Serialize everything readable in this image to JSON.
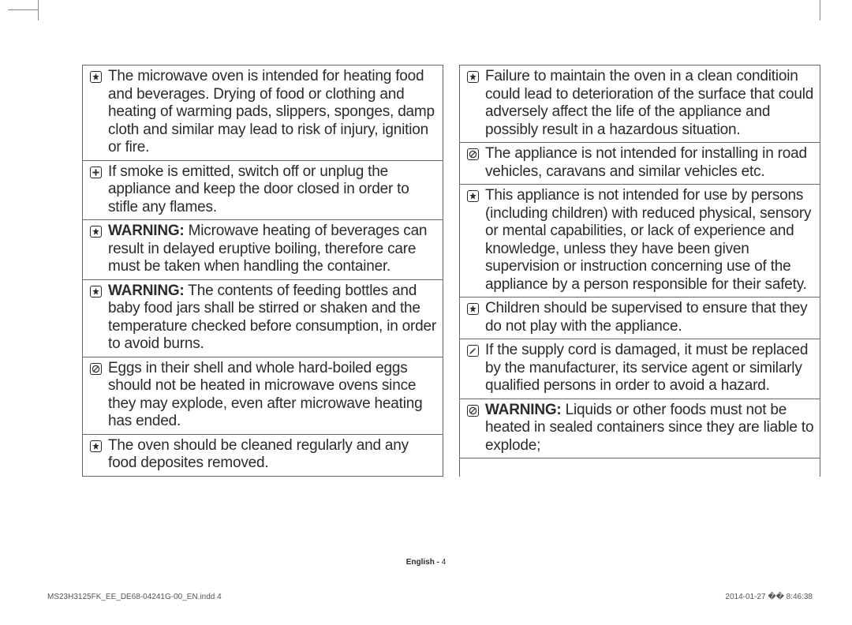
{
  "left": [
    {
      "icon": "star",
      "bold": "",
      "text": "The microwave oven is intended for heating food and beverages. Drying of food or clothing and heating of warming pads, slippers, sponges, damp cloth and similar may lead to risk of injury, ignition or fire."
    },
    {
      "icon": "plus",
      "bold": "",
      "text": "If smoke is emitted, switch off or unplug the appliance and keep the door closed in order to stifle any flames."
    },
    {
      "icon": "star",
      "bold": "WARNING:",
      "text": " Microwave heating of beverages can result in delayed eruptive boiling, therefore care must be taken when handling the container."
    },
    {
      "icon": "star",
      "bold": "WARNING:",
      "text": " The contents of feeding bottles and baby food jars shall be stirred or shaken and the temperature checked before consumption, in order to avoid burns."
    },
    {
      "icon": "slash",
      "bold": "",
      "text": "Eggs in their shell and whole hard-boiled eggs should not be heated in microwave ovens since they may explode, even after microwave heating has ended."
    },
    {
      "icon": "star",
      "bold": "",
      "text": "The oven should be cleaned regularly and any food deposites removed."
    }
  ],
  "right": [
    {
      "icon": "star",
      "bold": "",
      "text": "Failure to maintain the oven in a clean conditioin could lead to deterioration of the surface that could adversely affect the life of the appliance and possibly result in a hazardous situation."
    },
    {
      "icon": "slash",
      "bold": "",
      "text": "The appliance is not intended for installing in road vehicles, caravans and similar vehicles etc."
    },
    {
      "icon": "star",
      "bold": "",
      "text": "This appliance is not intended for use by persons (including children) with reduced physical, sensory or mental capabilities, or lack of experience and knowledge, unless they have been given supervision or instruction concerning use of the appliance by a person responsible for their safety."
    },
    {
      "icon": "star",
      "bold": "",
      "text": "Children should be supervised to ensure that they do not play with the appliance."
    },
    {
      "icon": "pencil",
      "bold": "",
      "text": "If the supply cord is damaged, it must be replaced by the manufacturer, its service agent or similarly qualified persons in order to avoid a hazard."
    },
    {
      "icon": "slash",
      "bold": "WARNING:",
      "text": " Liquids or other foods must not be heated in sealed containers since they are liable to explode;"
    }
  ],
  "footer": {
    "center_label": "English - ",
    "center_page": "4",
    "left": "MS23H3125FK_EE_DE68-04241G-00_EN.indd   4",
    "right": "2014-01-27   �� 8:46:38"
  }
}
